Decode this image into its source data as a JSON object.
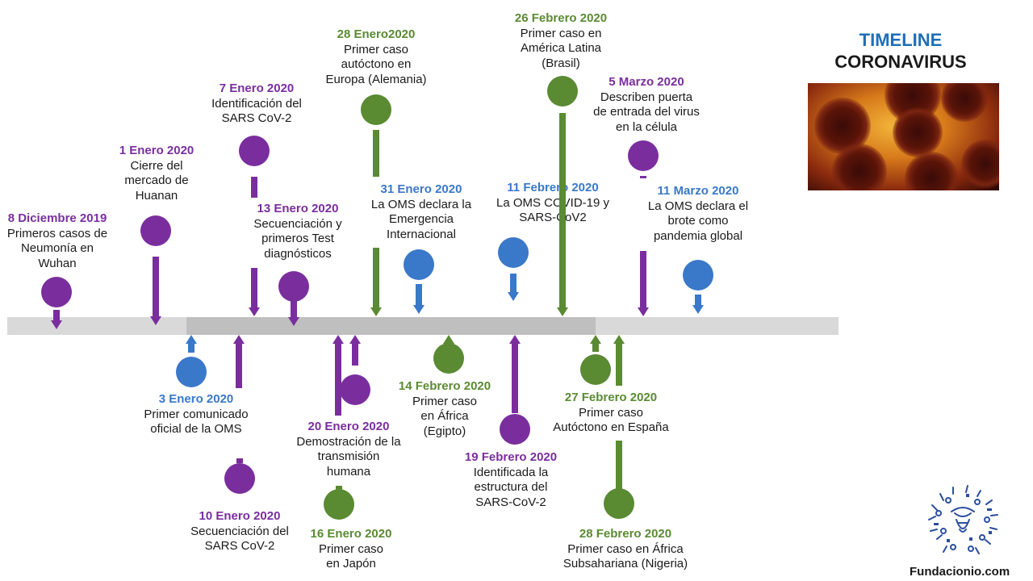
{
  "title": {
    "line1": "TIMELINE",
    "line2": "CORONAVIRUS"
  },
  "footer": {
    "site": "Fundacionio.com"
  },
  "colors": {
    "purple": "#7a2e9e",
    "blue": "#3a78c9",
    "green": "#5a8a32",
    "track_light": "#d9d9d9",
    "track_dark": "#bfbfbf"
  },
  "events": [
    {
      "date": "8 Diciembre 2019",
      "text": "Primeros casos de\nNeumonía en\nWuhan",
      "color": "purple"
    },
    {
      "date": "1 Enero 2020",
      "text": "Cierre del\nmercado de\nHuanan",
      "color": "purple"
    },
    {
      "date": "3 Enero 2020",
      "text": "Primer comunicado\noficial de la OMS",
      "color": "blue"
    },
    {
      "date": "7 Enero 2020",
      "text": "Identificación del\nSARS CoV-2",
      "color": "purple"
    },
    {
      "date": "10 Enero 2020",
      "text": "Secuenciación del\nSARS CoV-2",
      "color": "purple"
    },
    {
      "date": "13 Enero 2020",
      "text": "Secuenciación y\nprimeros Test\ndiagnósticos",
      "color": "purple"
    },
    {
      "date": "16 Enero 2020",
      "text": "Primer caso\nen Japón",
      "color": "green"
    },
    {
      "date": "20 Enero 2020",
      "text": "Demostración de la\ntransmisión\nhumana",
      "color": "purple"
    },
    {
      "date": "28 Enero2020",
      "text": "Primer caso\nautóctono en\nEuropa (Alemania)",
      "color": "green"
    },
    {
      "date": "31 Enero 2020",
      "text": "La OMS declara la\nEmergencia\nInternacional",
      "color": "blue"
    },
    {
      "date": "14 Febrero 2020",
      "text": "Primer caso\nen África\n(Egipto)",
      "color": "green"
    },
    {
      "date": "11 Febrero 2020",
      "text": "La OMS COVID-19 y\nSARS-CoV2",
      "color": "blue"
    },
    {
      "date": "19 Febrero 2020",
      "text": "Identificada la\nestructura del\nSARS-CoV-2",
      "color": "purple"
    },
    {
      "date": "26 Febrero 2020",
      "text": "Primer caso en\nAmérica Latina\n(Brasil)",
      "color": "green"
    },
    {
      "date": "27 Febrero 2020",
      "text": "Primer caso\nAutóctono en España",
      "color": "green"
    },
    {
      "date": "28 Febrero 2020",
      "text": "Primer caso en África\nSubsahariana (Nigeria)",
      "color": "green"
    },
    {
      "date": "5 Marzo 2020",
      "text": "Describen puerta\nde entrada del virus\nen la célula",
      "color": "purple"
    },
    {
      "date": "11 Marzo 2020",
      "text": "La OMS declara el\nbrote como\npandemia global",
      "color": "blue"
    }
  ]
}
